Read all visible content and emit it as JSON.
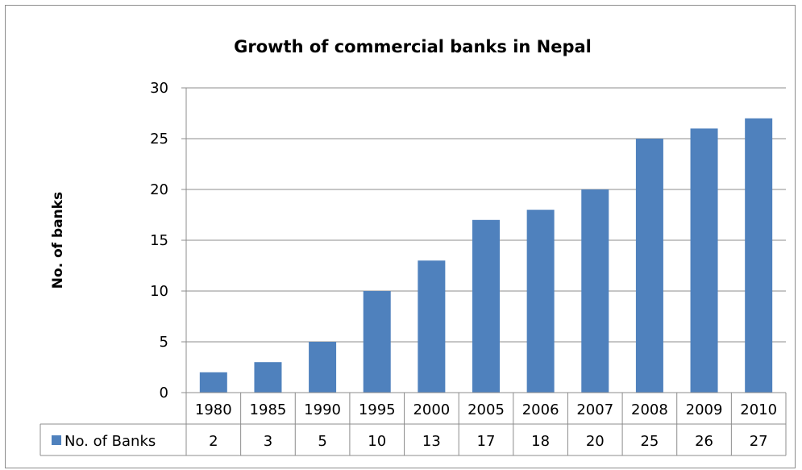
{
  "chart_data": {
    "type": "bar",
    "title": "Growth of commercial banks in Nepal",
    "xlabel": "",
    "ylabel": "No. of banks",
    "ylim": [
      0,
      30
    ],
    "yticks": [
      0,
      5,
      10,
      15,
      20,
      25,
      30
    ],
    "grid": true,
    "legend": "data-table-row",
    "categories": [
      "1980",
      "1985",
      "1990",
      "1995",
      "2000",
      "2005",
      "2006",
      "2007",
      "2008",
      "2009",
      "2010"
    ],
    "series": [
      {
        "name": "No. of Banks",
        "color": "#4f81bd",
        "values": [
          2,
          3,
          5,
          10,
          13,
          17,
          18,
          20,
          25,
          26,
          27
        ]
      }
    ]
  }
}
